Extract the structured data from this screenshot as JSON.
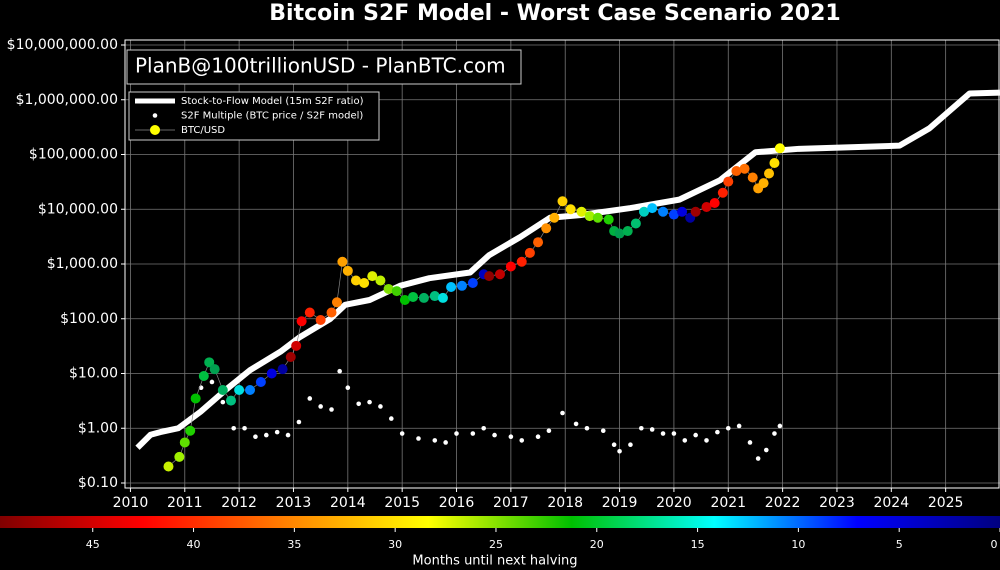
{
  "chart_data": {
    "type": "scatter",
    "title": "Bitcoin S2F Model - Worst Case Scenario 2021",
    "annotation": "PlanB@100trillionUSD - PlanBTC.com",
    "yscale": "log",
    "grid": true,
    "legend": "upper left",
    "xlim": [
      2009.9,
      2026
    ],
    "xticks": [
      2010,
      2011,
      2012,
      2013,
      2014,
      2015,
      2016,
      2017,
      2018,
      2019,
      2020,
      2021,
      2022,
      2023,
      2024,
      2025
    ],
    "ylim": [
      0.1,
      10000000
    ],
    "yticks": [
      {
        "value": 0.1,
        "label": "$0.10"
      },
      {
        "value": 1,
        "label": "$1.00"
      },
      {
        "value": 10,
        "label": "$10.00"
      },
      {
        "value": 100,
        "label": "$100.00"
      },
      {
        "value": 1000,
        "label": "$1,000.00"
      },
      {
        "value": 10000,
        "label": "$10,000.00"
      },
      {
        "value": 100000,
        "label": "$100,000.00"
      },
      {
        "value": 1000000,
        "label": "$1,000,000.00"
      },
      {
        "value": 10000000,
        "label": "$10,000,000.00"
      }
    ],
    "series": [
      {
        "name": "Stock-to-Flow Model (15m S2F ratio)",
        "type": "line",
        "color": "#ffffff",
        "x": [
          2010.13,
          2010.37,
          2010.55,
          2010.88,
          2011.29,
          2011.75,
          2012.2,
          2012.76,
          2013.1,
          2013.68,
          2013.95,
          2014.4,
          2014.96,
          2015.5,
          2016.25,
          2016.6,
          2017.17,
          2017.72,
          2018.27,
          2019.2,
          2020.1,
          2020.85,
          2021.5,
          2022.3,
          2024.15,
          2024.7,
          2025.44,
          2026
        ],
        "values": [
          0.44,
          0.76,
          0.85,
          1.0,
          2.0,
          5,
          11.5,
          25,
          45,
          100,
          180,
          220,
          400,
          550,
          700,
          1450,
          3100,
          7000,
          7800,
          10500,
          15000,
          34000,
          110000,
          127000,
          145000,
          300000,
          1300000,
          1350000
        ]
      },
      {
        "name": "S2F Multiple (BTC price / S2F model)",
        "type": "scatter",
        "color": "#ffffff",
        "x": [
          2011.1,
          2011.3,
          2011.5,
          2011.7,
          2011.9,
          2012.1,
          2012.3,
          2012.5,
          2012.7,
          2012.9,
          2013.1,
          2013.3,
          2013.5,
          2013.7,
          2013.85,
          2014.0,
          2014.2,
          2014.4,
          2014.6,
          2014.8,
          2015.0,
          2015.3,
          2015.6,
          2015.8,
          2016.0,
          2016.3,
          2016.5,
          2016.7,
          2017.0,
          2017.2,
          2017.5,
          2017.7,
          2017.95,
          2018.2,
          2018.4,
          2018.7,
          2018.9,
          2019.0,
          2019.2,
          2019.4,
          2019.6,
          2019.8,
          2020.0,
          2020.2,
          2020.4,
          2020.6,
          2020.8,
          2021.0,
          2021.2,
          2021.4,
          2021.55,
          2021.7,
          2021.85,
          2021.95
        ],
        "values": [
          1.5,
          5.5,
          7,
          3,
          1.0,
          1.0,
          0.7,
          0.75,
          0.85,
          0.75,
          1.3,
          3.5,
          2.5,
          2.2,
          11,
          5.5,
          2.8,
          3.0,
          2.5,
          1.5,
          0.8,
          0.65,
          0.6,
          0.55,
          0.8,
          0.8,
          1.0,
          0.75,
          0.7,
          0.6,
          0.7,
          0.9,
          1.9,
          1.2,
          1.0,
          0.9,
          0.5,
          0.38,
          0.5,
          1.0,
          0.95,
          0.8,
          0.8,
          0.6,
          0.75,
          0.6,
          0.85,
          1.0,
          1.1,
          0.55,
          0.28,
          0.4,
          0.8,
          1.1
        ]
      },
      {
        "name": "BTC/USD",
        "type": "scatter",
        "color": "#ffff00",
        "x": [
          2010.7,
          2010.9,
          2011.0,
          2011.1,
          2011.2,
          2011.35,
          2011.45,
          2011.55,
          2011.7,
          2011.85,
          2012.0,
          2012.2,
          2012.4,
          2012.6,
          2012.8,
          2012.95,
          2013.05,
          2013.15,
          2013.3,
          2013.5,
          2013.7,
          2013.8,
          2013.9,
          2014.0,
          2014.15,
          2014.3,
          2014.45,
          2014.6,
          2014.75,
          2014.9,
          2015.05,
          2015.2,
          2015.4,
          2015.6,
          2015.75,
          2015.9,
          2016.1,
          2016.3,
          2016.5,
          2016.6,
          2016.8,
          2017.0,
          2017.2,
          2017.35,
          2017.5,
          2017.65,
          2017.8,
          2017.95,
          2018.1,
          2018.3,
          2018.45,
          2018.6,
          2018.8,
          2018.9,
          2019.0,
          2019.15,
          2019.3,
          2019.45,
          2019.6,
          2019.8,
          2020.0,
          2020.15,
          2020.3,
          2020.4,
          2020.6,
          2020.75,
          2020.9,
          2021.0,
          2021.15,
          2021.3,
          2021.45,
          2021.55,
          2021.65,
          2021.75,
          2021.85,
          2021.95
        ],
        "values": [
          0.2,
          0.3,
          0.55,
          0.9,
          3.5,
          9,
          16,
          12,
          5,
          3.2,
          5,
          5,
          7,
          10,
          12,
          20,
          32,
          90,
          130,
          95,
          130,
          200,
          1100,
          750,
          500,
          450,
          600,
          500,
          350,
          320,
          220,
          250,
          240,
          260,
          240,
          380,
          400,
          450,
          650,
          600,
          650,
          900,
          1100,
          1600,
          2500,
          4500,
          7000,
          14000,
          10000,
          9000,
          7500,
          7000,
          6500,
          4000,
          3600,
          4000,
          5500,
          9000,
          10500,
          9000,
          8000,
          9000,
          7000,
          9000,
          11000,
          13000,
          20000,
          32000,
          50000,
          55000,
          38000,
          24000,
          30000,
          45000,
          70000,
          130000
        ],
        "colors": [
          "#c8f000",
          "#a0f000",
          "#60e000",
          "#20d000",
          "#00c000",
          "#00c040",
          "#00b050",
          "#00a050",
          "#00b060",
          "#00c080",
          "#00e0e0",
          "#0080ff",
          "#0040ff",
          "#0000e0",
          "#0000a0",
          "#a00000",
          "#d00000",
          "#ff0000",
          "#ff2000",
          "#ff4000",
          "#ff6000",
          "#ff8000",
          "#ffa000",
          "#ffb000",
          "#ffd000",
          "#ffe000",
          "#e0f000",
          "#c0f000",
          "#80e000",
          "#40d000",
          "#00c000",
          "#00c040",
          "#00b060",
          "#00c080",
          "#00e0e0",
          "#00c0ff",
          "#0080ff",
          "#0040ff",
          "#0000c0",
          "#900000",
          "#c00000",
          "#ff0000",
          "#ff2000",
          "#ff4000",
          "#ff6000",
          "#ff9000",
          "#ffb000",
          "#ffd000",
          "#ffe000",
          "#e0f000",
          "#a0f000",
          "#60e000",
          "#20d000",
          "#00b040",
          "#00a050",
          "#00b050",
          "#00c070",
          "#00d0c0",
          "#00c0ff",
          "#0080ff",
          "#0040ff",
          "#0000e0",
          "#0000a0",
          "#a00000",
          "#d00000",
          "#ff0000",
          "#ff2000",
          "#ff4000",
          "#ff6000",
          "#ff7000",
          "#ff8000",
          "#ffa000",
          "#ffb000",
          "#ffc000",
          "#ffe000",
          "#ffff00"
        ]
      }
    ],
    "colorbar": {
      "label": "Months until next halving",
      "lim": [
        49.6,
        0
      ],
      "ticks": [
        45,
        40,
        35,
        30,
        25,
        20,
        15,
        10,
        5,
        0
      ],
      "colors": [
        "#800000",
        "#ff0000",
        "#ff8000",
        "#ffff00",
        "#00c000",
        "#00ffff",
        "#0000ff",
        "#000080"
      ]
    }
  }
}
